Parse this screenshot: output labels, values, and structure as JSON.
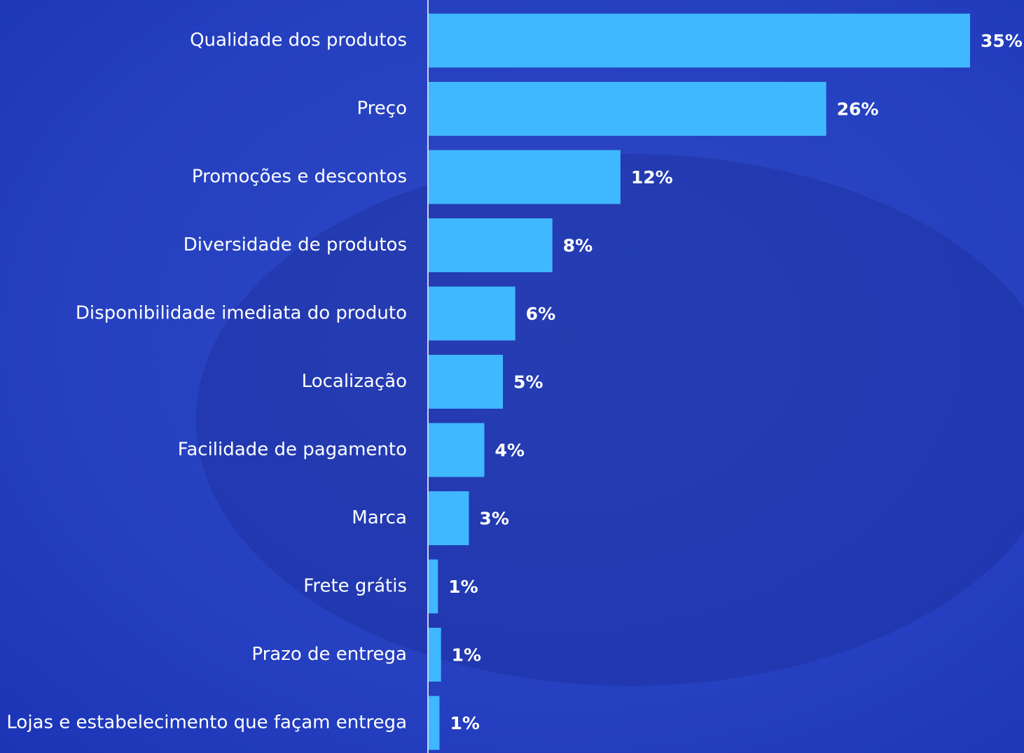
{
  "chart_data": {
    "type": "bar",
    "orientation": "horizontal",
    "categories": [
      "Qualidade dos produtos",
      "Preço",
      "Promoções e descontos",
      "Diversidade de produtos",
      "Disponibilidade imediata do produto",
      "Localização",
      "Facilidade de pagamento",
      "Marca",
      "Frete grátis",
      "Prazo de entrega",
      "Lojas e estabelecimento que façam entrega"
    ],
    "values": [
      35,
      25.7,
      12.4,
      8.0,
      5.6,
      4.8,
      3.6,
      2.6,
      0.6,
      0.8,
      0.7
    ],
    "value_labels": [
      "35%",
      "26%",
      "12%",
      "8%",
      "6%",
      "5%",
      "4%",
      "3%",
      "1%",
      "1%",
      "1%"
    ],
    "color": "#3fb8ff"
  }
}
